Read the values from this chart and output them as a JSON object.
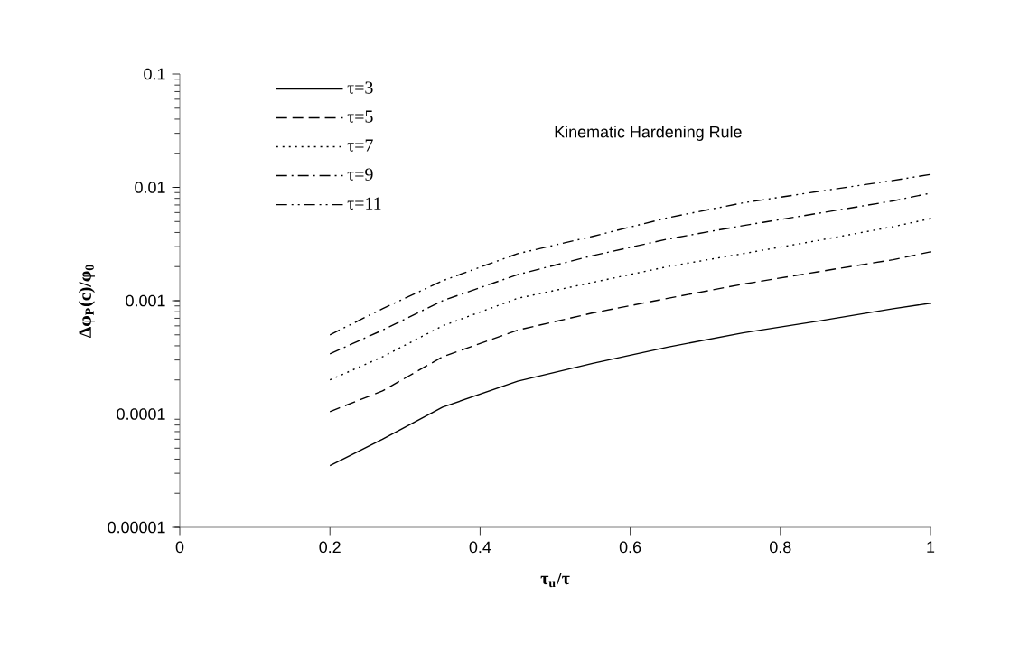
{
  "chart_data": {
    "type": "line",
    "title": "Kinematic Hardening Rule",
    "xlabel": "τ$_{u}$/τ",
    "ylabel": "Δφ$_{P}$(c)/φ$_{0}$",
    "x": [
      0.2,
      0.27,
      0.35,
      0.45,
      0.55,
      0.65,
      0.75,
      0.85,
      0.95,
      1.0
    ],
    "series": [
      {
        "name": "τ=3",
        "color": "#000000",
        "line_style": "solid",
        "values": [
          3.5e-05,
          6e-05,
          0.000115,
          0.000195,
          0.00028,
          0.00039,
          0.00052,
          0.00066,
          0.00085,
          0.00095
        ]
      },
      {
        "name": "τ=5",
        "color": "#000000",
        "line_style": "dashed",
        "values": [
          0.000105,
          0.00016,
          0.00032,
          0.00055,
          0.00078,
          0.00105,
          0.0014,
          0.0018,
          0.0023,
          0.0027
        ]
      },
      {
        "name": "τ=7",
        "color": "#000000",
        "line_style": "dotted",
        "values": [
          0.0002,
          0.00032,
          0.0006,
          0.00105,
          0.00145,
          0.002,
          0.0026,
          0.0034,
          0.0045,
          0.0053
        ]
      },
      {
        "name": "τ=9",
        "color": "#000000",
        "line_style": "dashdot",
        "values": [
          0.00034,
          0.00055,
          0.001,
          0.0017,
          0.0025,
          0.0035,
          0.0046,
          0.0059,
          0.0076,
          0.0089
        ]
      },
      {
        "name": "τ=11",
        "color": "#000000",
        "line_style": "dashdotdot",
        "values": [
          0.0005,
          0.00085,
          0.0015,
          0.0026,
          0.0037,
          0.0054,
          0.0073,
          0.0092,
          0.0115,
          0.013
        ]
      }
    ],
    "log": "y",
    "xlim": [
      0,
      1
    ],
    "xticks": [
      0,
      0.2,
      0.4,
      0.6,
      0.8,
      1
    ],
    "ylim": [
      1e-05,
      0.1
    ],
    "yticks": [
      {
        "value": 1e-05,
        "label": "0.00001"
      },
      {
        "value": 0.0001,
        "label": "0.0001"
      },
      {
        "value": 0.001,
        "label": "0.001"
      },
      {
        "value": 0.01,
        "label": "0.01"
      },
      {
        "value": 0.1,
        "label": "0.1"
      }
    ],
    "legend": "top left",
    "grid": false
  }
}
